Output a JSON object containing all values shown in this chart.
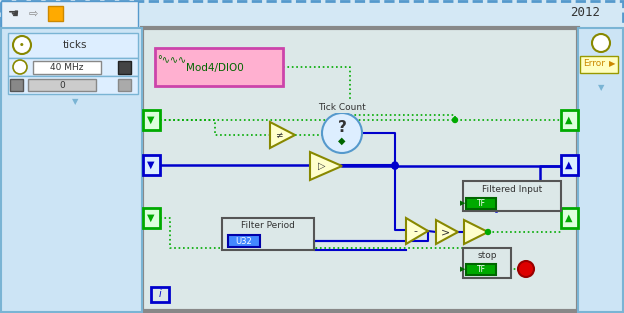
{
  "bg_color": "#d4e8f5",
  "title_text": "2012",
  "ticks_label": "ticks",
  "mhz_label": "40 MHz",
  "zero_label": "0",
  "error_label": "Error",
  "mod_label": "Mod4/DIO0",
  "tick_count_label": "Tick Count",
  "filter_period_label": "Filter Period",
  "filtered_input_label": "Filtered Input",
  "stop_label": "stop",
  "u32_label": "U32",
  "tf_label": "TF",
  "green": "#00aa00",
  "blue": "#0000cc",
  "dark_green": "#006600",
  "pink_fill": "#ffb0d0",
  "pink_border": "#cc44aa",
  "light_blue_panel": "#cce4f5",
  "diagram_bg": "#dce8e8",
  "toolbar_bg": "#e8f0f8",
  "wire_green": "#00aa00",
  "wire_blue": "#0000cc"
}
